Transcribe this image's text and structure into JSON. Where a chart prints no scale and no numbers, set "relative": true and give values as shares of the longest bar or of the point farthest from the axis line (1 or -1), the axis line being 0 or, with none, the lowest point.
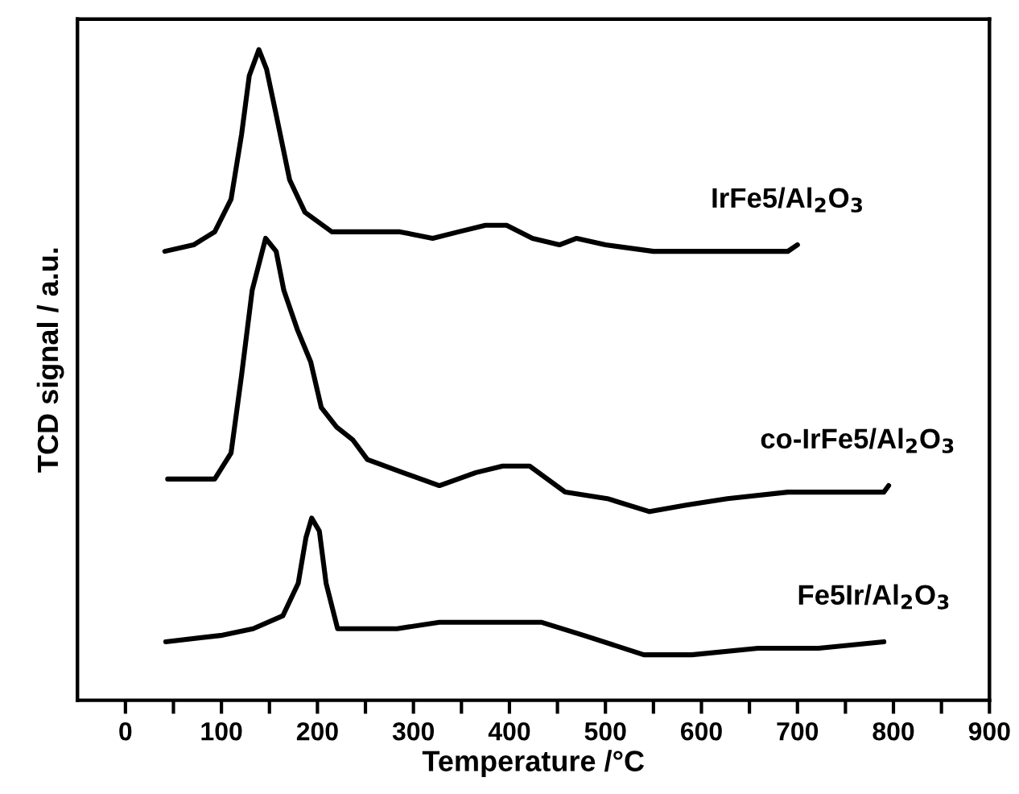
{
  "chart_data": {
    "type": "line",
    "relative": true,
    "xlabel": "Temperature /°C",
    "ylabel": "TCD signal / a.u.",
    "xlim": [
      -50,
      900
    ],
    "xticks": [
      0,
      {
        "value": 50,
        "label": null
      },
      100,
      {
        "value": 150,
        "label": null
      },
      200,
      {
        "value": 250,
        "label": null
      },
      300,
      {
        "value": 350,
        "label": null
      },
      400,
      {
        "value": 450,
        "label": null
      },
      500,
      {
        "value": 550,
        "label": null
      },
      600,
      {
        "value": 650,
        "label": null
      },
      700,
      {
        "value": 750,
        "label": null
      },
      800,
      {
        "value": 850,
        "label": null
      },
      900
    ],
    "tick_labels": "x",
    "grid": false,
    "legend": false,
    "marker": "none",
    "line_style": "solid",
    "series": [
      {
        "name": "IrFe5/Al$_{2}$O$_{3}$",
        "color": "#000000",
        "x": [
          41,
          71,
          93,
          110,
          121,
          129,
          139,
          147,
          157,
          171,
          187,
          215,
          248,
          286,
          320,
          347,
          375,
          397,
          424,
          452,
          470,
          500,
          550,
          600,
          650,
          690,
          700
        ],
        "values": [
          0.69,
          0.7,
          0.72,
          0.77,
          0.87,
          0.96,
          1.0,
          0.97,
          0.9,
          0.8,
          0.75,
          0.72,
          0.72,
          0.72,
          0.71,
          0.72,
          0.73,
          0.73,
          0.71,
          0.7,
          0.71,
          0.7,
          0.69,
          0.69,
          0.69,
          0.69,
          0.7
        ]
      },
      {
        "name": "co-IrFe5/Al$_{2}$O$_{3}$",
        "color": "#000000",
        "x": [
          44,
          93,
          110,
          121,
          132,
          146,
          157,
          165,
          179,
          193,
          204,
          220,
          237,
          252,
          289,
          327,
          365,
          393,
          421,
          458,
          502,
          546,
          584,
          627,
          690,
          753,
          790,
          795
        ],
        "values": [
          0.34,
          0.34,
          0.38,
          0.5,
          0.63,
          0.71,
          0.69,
          0.63,
          0.57,
          0.52,
          0.45,
          0.42,
          0.4,
          0.37,
          0.35,
          0.33,
          0.35,
          0.36,
          0.36,
          0.32,
          0.31,
          0.29,
          0.3,
          0.31,
          0.32,
          0.32,
          0.32,
          0.33
        ]
      },
      {
        "name": "Fe5Ir/Al$_{2}$O$_{3}$",
        "color": "#000000",
        "x": [
          42,
          101,
          133,
          164,
          180,
          188,
          194,
          202,
          209,
          221,
          283,
          327,
          377,
          433,
          477,
          540,
          590,
          659,
          722,
          790
        ],
        "values": [
          0.09,
          0.1,
          0.11,
          0.13,
          0.18,
          0.25,
          0.28,
          0.26,
          0.18,
          0.11,
          0.11,
          0.12,
          0.12,
          0.12,
          0.1,
          0.07,
          0.07,
          0.08,
          0.08,
          0.09
        ]
      }
    ]
  }
}
